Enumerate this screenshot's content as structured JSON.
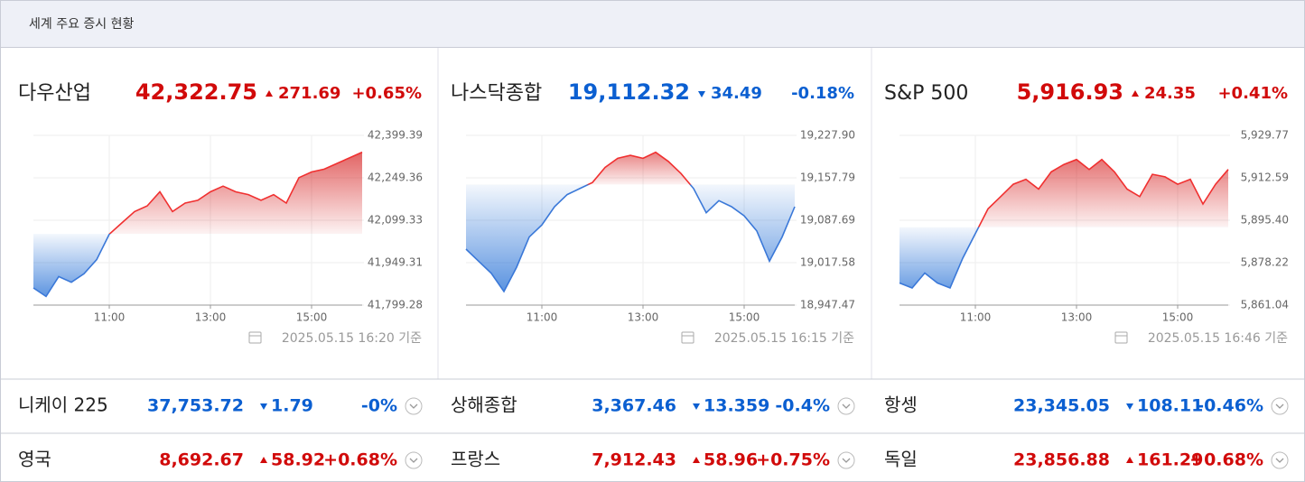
{
  "header": {
    "title": "세계 주요 증시 현황"
  },
  "markets": [
    {
      "name": "다우산업",
      "price": "42,322.75",
      "change": "271.69",
      "pct": "+0.65%",
      "direction": "up",
      "timestamp": "2025.05.15 16:20 기준",
      "chart": {
        "type": "line",
        "x": [
          "09:30",
          "09:45",
          "10:00",
          "10:15",
          "10:30",
          "10:45",
          "11:00",
          "11:15",
          "11:30",
          "11:45",
          "12:00",
          "12:15",
          "12:30",
          "12:45",
          "13:00",
          "13:15",
          "13:30",
          "13:45",
          "14:00",
          "14:15",
          "14:30",
          "14:45",
          "15:00",
          "15:15",
          "15:30",
          "15:45",
          "16:00"
        ],
        "values": [
          41860,
          41830,
          41900,
          41880,
          41910,
          41960,
          42050,
          42090,
          42130,
          42150,
          42200,
          42130,
          42160,
          42170,
          42200,
          42220,
          42200,
          42190,
          42170,
          42190,
          42160,
          42250,
          42270,
          42280,
          42300,
          42320,
          42340
        ],
        "xlim": [
          "09:30",
          "16:00"
        ],
        "xticks": [
          "11:00",
          "13:00",
          "15:00"
        ],
        "ylim": [
          41799.28,
          42399.39
        ],
        "yticks": [
          {
            "value": 41799.28,
            "label": "41,799.28"
          },
          {
            "value": 41949.31,
            "label": "41,949.31"
          },
          {
            "value": 42099.33,
            "label": "42,099.33"
          },
          {
            "value": 42249.36,
            "label": "42,249.36"
          },
          {
            "value": 42399.39,
            "label": "42,399.39"
          }
        ]
      }
    },
    {
      "name": "나스닥종합",
      "price": "19,112.32",
      "change": "34.49",
      "pct": "-0.18%",
      "direction": "down",
      "timestamp": "2025.05.15 16:15 기준",
      "chart": {
        "type": "line",
        "x": [
          "09:30",
          "09:45",
          "10:00",
          "10:15",
          "10:30",
          "10:45",
          "11:00",
          "11:15",
          "11:30",
          "11:45",
          "12:00",
          "12:15",
          "12:30",
          "12:45",
          "13:00",
          "13:15",
          "13:30",
          "13:45",
          "14:00",
          "14:15",
          "14:30",
          "14:45",
          "15:00",
          "15:15",
          "15:30",
          "15:45",
          "16:00"
        ],
        "values": [
          19040,
          19020,
          19000,
          18970,
          19010,
          19060,
          19080,
          19110,
          19130,
          19140,
          19150,
          19175,
          19190,
          19195,
          19190,
          19200,
          19185,
          19165,
          19140,
          19100,
          19120,
          19110,
          19095,
          19070,
          19020,
          19060,
          19110
        ],
        "xlim": [
          "09:30",
          "16:00"
        ],
        "xticks": [
          "11:00",
          "13:00",
          "15:00"
        ],
        "ylim": [
          18947.47,
          19227.9
        ],
        "yticks": [
          {
            "value": 18947.47,
            "label": "18,947.47"
          },
          {
            "value": 19017.58,
            "label": "19,017.58"
          },
          {
            "value": 19087.69,
            "label": "19,087.69"
          },
          {
            "value": 19157.79,
            "label": "19,157.79"
          },
          {
            "value": 19227.9,
            "label": "19,227.90"
          }
        ]
      }
    },
    {
      "name": "S&P 500",
      "price": "5,916.93",
      "change": "24.35",
      "pct": "+0.41%",
      "direction": "up",
      "timestamp": "2025.05.15 16:46 기준",
      "chart": {
        "type": "line",
        "x": [
          "09:30",
          "09:45",
          "10:00",
          "10:15",
          "10:30",
          "10:45",
          "11:00",
          "11:15",
          "11:30",
          "11:45",
          "12:00",
          "12:15",
          "12:30",
          "12:45",
          "13:00",
          "13:15",
          "13:30",
          "13:45",
          "14:00",
          "14:15",
          "14:30",
          "14:45",
          "15:00",
          "15:15",
          "15:30",
          "15:45",
          "16:00"
        ],
        "values": [
          5870,
          5868,
          5874,
          5870,
          5868,
          5880,
          5890,
          5900,
          5905,
          5910,
          5912,
          5908,
          5915,
          5918,
          5920,
          5916,
          5920,
          5915,
          5908,
          5905,
          5914,
          5913,
          5910,
          5912,
          5902,
          5910,
          5916
        ],
        "xlim": [
          "09:30",
          "16:00"
        ],
        "xticks": [
          "11:00",
          "13:00",
          "15:00"
        ],
        "ylim": [
          5861.04,
          5929.77
        ],
        "yticks": [
          {
            "value": 5861.04,
            "label": "5,861.04"
          },
          {
            "value": 5878.22,
            "label": "5,878.22"
          },
          {
            "value": 5895.4,
            "label": "5,895.40"
          },
          {
            "value": 5912.59,
            "label": "5,912.59"
          },
          {
            "value": 5929.77,
            "label": "5,929.77"
          }
        ]
      }
    }
  ],
  "others": [
    {
      "name": "니케이 225",
      "price": "37,753.72",
      "change": "1.79",
      "pct": "-0%",
      "direction": "down"
    },
    {
      "name": "상해종합",
      "price": "3,367.46",
      "change": "13.359",
      "pct": "-0.4%",
      "direction": "down"
    },
    {
      "name": "항셍",
      "price": "23,345.05",
      "change": "108.11",
      "pct": "-0.46%",
      "direction": "down"
    },
    {
      "name": "영국",
      "price": "8,692.67",
      "change": "58.92",
      "pct": "+0.68%",
      "direction": "up"
    },
    {
      "name": "프랑스",
      "price": "7,912.43",
      "change": "58.96",
      "pct": "+0.75%",
      "direction": "up"
    },
    {
      "name": "독일",
      "price": "23,856.88",
      "change": "161.29",
      "pct": "+0.68%",
      "direction": "up"
    }
  ]
}
